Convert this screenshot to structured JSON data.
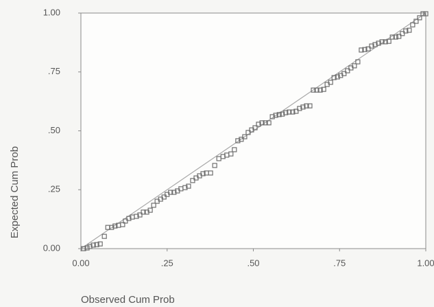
{
  "chart_data": {
    "type": "scatter",
    "x_label": "Observed Cum Prob",
    "y_label": "Expected Cum Prob",
    "x": [
      0.008,
      0.018,
      0.026,
      0.036,
      0.046,
      0.056,
      0.068,
      0.078,
      0.089,
      0.099,
      0.109,
      0.121,
      0.129,
      0.139,
      0.149,
      0.161,
      0.171,
      0.181,
      0.191,
      0.201,
      0.211,
      0.221,
      0.231,
      0.241,
      0.25,
      0.26,
      0.27,
      0.28,
      0.29,
      0.302,
      0.312,
      0.324,
      0.334,
      0.344,
      0.354,
      0.364,
      0.376,
      0.388,
      0.4,
      0.412,
      0.423,
      0.435,
      0.445,
      0.455,
      0.465,
      0.475,
      0.485,
      0.495,
      0.505,
      0.515,
      0.525,
      0.535,
      0.545,
      0.555,
      0.565,
      0.575,
      0.584,
      0.594,
      0.604,
      0.614,
      0.624,
      0.634,
      0.644,
      0.654,
      0.664,
      0.674,
      0.684,
      0.694,
      0.704,
      0.714,
      0.724,
      0.734,
      0.744,
      0.753,
      0.763,
      0.773,
      0.783,
      0.793,
      0.803,
      0.813,
      0.823,
      0.833,
      0.843,
      0.853,
      0.863,
      0.873,
      0.883,
      0.893,
      0.903,
      0.913,
      0.922,
      0.932,
      0.942,
      0.952,
      0.962,
      0.972,
      0.982,
      0.992,
      1.0
    ],
    "y": [
      0,
      0.003,
      0.009,
      0.015,
      0.017,
      0.02,
      0.052,
      0.09,
      0.09,
      0.096,
      0.099,
      0.102,
      0.117,
      0.128,
      0.134,
      0.137,
      0.143,
      0.155,
      0.155,
      0.163,
      0.184,
      0.201,
      0.21,
      0.219,
      0.23,
      0.239,
      0.239,
      0.245,
      0.254,
      0.259,
      0.265,
      0.289,
      0.3,
      0.309,
      0.318,
      0.321,
      0.321,
      0.353,
      0.382,
      0.391,
      0.397,
      0.402,
      0.42,
      0.458,
      0.464,
      0.475,
      0.493,
      0.504,
      0.513,
      0.528,
      0.534,
      0.534,
      0.534,
      0.56,
      0.566,
      0.569,
      0.571,
      0.577,
      0.58,
      0.58,
      0.583,
      0.595,
      0.601,
      0.606,
      0.606,
      0.673,
      0.673,
      0.673,
      0.676,
      0.697,
      0.706,
      0.726,
      0.729,
      0.735,
      0.743,
      0.755,
      0.767,
      0.776,
      0.793,
      0.843,
      0.845,
      0.848,
      0.86,
      0.866,
      0.872,
      0.878,
      0.878,
      0.88,
      0.898,
      0.898,
      0.901,
      0.913,
      0.924,
      0.927,
      0.95,
      0.965,
      0.98,
      0.997,
      0.997
    ],
    "color": "#6e6e6e",
    "line_color": "#a8a8a8",
    "diagonal": true,
    "xlim": [
      0,
      1
    ],
    "ylim": [
      0,
      1
    ],
    "xticks": [
      {
        "value": 0,
        "label": "0.00"
      },
      {
        "value": 0.25,
        "label": ".25"
      },
      {
        "value": 0.5,
        "label": ".50"
      },
      {
        "value": 0.75,
        "label": ".75"
      },
      {
        "value": 1,
        "label": "1.00"
      }
    ],
    "yticks": [
      {
        "value": 0,
        "label": "0.00"
      },
      {
        "value": 0.25,
        "label": ".25"
      },
      {
        "value": 0.5,
        "label": ".50"
      },
      {
        "value": 0.75,
        "label": ".75"
      },
      {
        "value": 1,
        "label": "1.00"
      }
    ]
  }
}
